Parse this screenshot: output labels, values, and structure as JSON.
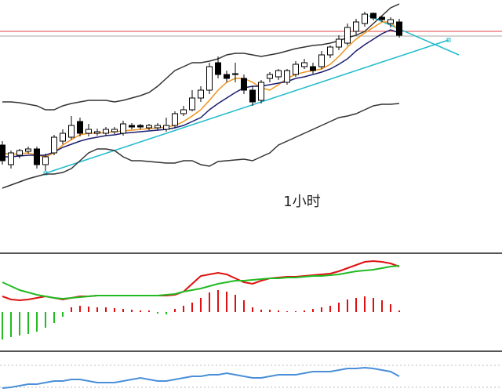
{
  "chart_data": [
    {
      "type": "candlestick",
      "annotation": "1小时",
      "ylim": [
        0,
        320
      ],
      "open": [
        135,
        110,
        122,
        127,
        130,
        110,
        125,
        140,
        145,
        165,
        150,
        150,
        150,
        152,
        150,
        160,
        160,
        157,
        157,
        155,
        160,
        175,
        180,
        195,
        205,
        240,
        225,
        225,
        220,
        205,
        192,
        220,
        222,
        215,
        225,
        235,
        235,
        235,
        250,
        260,
        265,
        280,
        290,
        303,
        298,
        290,
        292
      ],
      "high": [
        140,
        128,
        130,
        133,
        133,
        124,
        148,
        155,
        172,
        170,
        162,
        156,
        158,
        158,
        166,
        163,
        162,
        162,
        163,
        170,
        178,
        185,
        205,
        210,
        240,
        248,
        230,
        240,
        225,
        210,
        218,
        228,
        232,
        232,
        242,
        245,
        240,
        255,
        262,
        275,
        290,
        296,
        305,
        304,
        300,
        298,
        296
      ],
      "low": [
        110,
        105,
        118,
        124,
        105,
        102,
        122,
        136,
        142,
        146,
        146,
        147,
        147,
        149,
        147,
        155,
        155,
        154,
        154,
        152,
        157,
        172,
        178,
        190,
        200,
        220,
        215,
        215,
        200,
        185,
        188,
        215,
        218,
        212,
        222,
        232,
        226,
        232,
        246,
        256,
        262,
        276,
        286,
        294,
        292,
        285,
        272
      ],
      "close": [
        115,
        125,
        128,
        130,
        110,
        120,
        145,
        150,
        160,
        150,
        155,
        152,
        155,
        155,
        162,
        158,
        158,
        160,
        160,
        160,
        175,
        180,
        195,
        205,
        235,
        225,
        220,
        226,
        205,
        190,
        215,
        225,
        230,
        230,
        238,
        240,
        230,
        250,
        260,
        270,
        285,
        292,
        302,
        297,
        295,
        295,
        275
      ],
      "up_color": "#ffffff",
      "down_color": "#000000",
      "series": [
        {
          "color": "#f0921e",
          "values": [
            125,
            123,
            124,
            125,
            122,
            120,
            125,
            135,
            142,
            148,
            150,
            150,
            151,
            152,
            153,
            154,
            155,
            156,
            157,
            158,
            160,
            165,
            172,
            180,
            192,
            205,
            215,
            220,
            220,
            215,
            208,
            205,
            212,
            220,
            225,
            228,
            230,
            232,
            238,
            248,
            260,
            270,
            278,
            285,
            292,
            292,
            280
          ]
        },
        {
          "color": "#1c1c70",
          "values": [
            120,
            120,
            121,
            122,
            122,
            122,
            126,
            132,
            136,
            140,
            143,
            145,
            147,
            148,
            150,
            151,
            152,
            153,
            154,
            155,
            157,
            160,
            165,
            170,
            180,
            188,
            195,
            202,
            208,
            210,
            210,
            212,
            214,
            216,
            220,
            222,
            225,
            228,
            232,
            238,
            245,
            255,
            263,
            270,
            277,
            282,
            278
          ]
        },
        {
          "color": "#333333",
          "values": [
            190,
            190,
            189,
            187,
            185,
            180,
            180,
            185,
            188,
            190,
            192,
            192,
            192,
            190,
            192,
            195,
            198,
            202,
            210,
            220,
            230,
            235,
            240,
            240,
            242,
            245,
            250,
            252,
            252,
            250,
            248,
            250,
            252,
            255,
            258,
            260,
            262,
            263,
            265,
            268,
            272,
            275,
            280,
            290,
            300,
            310,
            315
          ]
        },
        {
          "color": "#333333",
          "values": [
            80,
            84,
            88,
            92,
            95,
            98,
            98,
            100,
            105,
            115,
            125,
            130,
            130,
            128,
            120,
            115,
            115,
            114,
            113,
            112,
            112,
            115,
            115,
            110,
            108,
            114,
            115,
            116,
            117,
            115,
            120,
            125,
            135,
            140,
            145,
            150,
            155,
            160,
            165,
            170,
            172,
            175,
            180,
            185,
            187,
            187,
            188
          ]
        }
      ]
    },
    {
      "type": "macd",
      "ylim": [
        -50,
        73
      ],
      "up_color": "#dd1111",
      "down_color": "#22bb22",
      "values": [
        -35,
        -32,
        -30,
        -28,
        -25,
        -20,
        -14,
        -6,
        6,
        8,
        7,
        6,
        6,
        5,
        4,
        3,
        2,
        2,
        -2,
        -3,
        4,
        8,
        12,
        18,
        25,
        28,
        26,
        22,
        15,
        6,
        3,
        3,
        2,
        1,
        1,
        2,
        4,
        6,
        8,
        12,
        16,
        18,
        20,
        18,
        15,
        10,
        2
      ],
      "series": [
        {
          "color": "#dd1111",
          "values": [
            20,
            16,
            15,
            16,
            18,
            20,
            18,
            16,
            18,
            20,
            20,
            21,
            21,
            21,
            21,
            21,
            21,
            21,
            21,
            21,
            22,
            26,
            36,
            46,
            48,
            50,
            48,
            43,
            38,
            36,
            40,
            43,
            44,
            45,
            45,
            46,
            47,
            48,
            49,
            52,
            56,
            60,
            64,
            65,
            64,
            62,
            58
          ]
        },
        {
          "color": "#22bb22",
          "values": [
            38,
            33,
            28,
            25,
            22,
            20,
            18,
            17,
            18,
            19,
            20,
            21,
            21,
            21,
            21,
            21,
            21,
            21,
            21,
            22,
            23,
            26,
            28,
            30,
            33,
            36,
            38,
            40,
            40,
            41,
            42,
            43,
            43,
            44,
            44,
            45,
            46,
            46,
            47,
            48,
            50,
            52,
            53,
            54,
            56,
            58,
            59
          ]
        }
      ]
    },
    {
      "type": "line",
      "ylim": [
        0,
        50
      ],
      "series": [
        {
          "color": "#4a8fd8",
          "values": [
            5,
            6,
            8,
            10,
            10,
            12,
            14,
            14,
            16,
            16,
            14,
            12,
            12,
            12,
            14,
            16,
            18,
            16,
            14,
            14,
            16,
            18,
            20,
            20,
            22,
            22,
            24,
            22,
            20,
            18,
            18,
            20,
            22,
            22,
            22,
            24,
            26,
            26,
            26,
            28,
            30,
            30,
            31,
            30,
            28,
            26,
            20
          ]
        }
      ]
    }
  ]
}
